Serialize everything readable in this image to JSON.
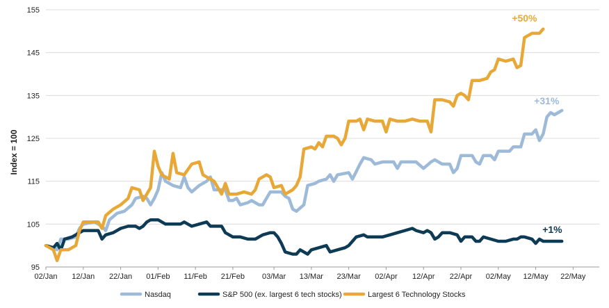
{
  "chart_data": {
    "type": "line",
    "title": "",
    "xlabel": "",
    "ylabel": "Index = 100",
    "ylim": [
      95,
      155
    ],
    "yticks": [
      95,
      105,
      115,
      125,
      135,
      145,
      155
    ],
    "grid": true,
    "legend_position": "bottom-center",
    "x_tick_labels": [
      "02/Jan",
      "12/Jan",
      "22/Jan",
      "01/Feb",
      "11/Feb",
      "21/Feb",
      "03/Mar",
      "13/Mar",
      "23/Mar",
      "02/Apr",
      "12/Apr",
      "22/Apr",
      "02/May",
      "12/May",
      "22/May"
    ],
    "x_tick_days": [
      0,
      10,
      20,
      30,
      40,
      50,
      61,
      71,
      81,
      91,
      101,
      111,
      121,
      131,
      141
    ],
    "x_range_days": [
      0,
      148
    ],
    "series": [
      {
        "name": "Nasdaq",
        "color": "#9dbad8",
        "end_label": "+31%",
        "points": [
          [
            0,
            100
          ],
          [
            2,
            99.5
          ],
          [
            3,
            99
          ],
          [
            4,
            101.5
          ],
          [
            6,
            101.5
          ],
          [
            8,
            102
          ],
          [
            9,
            104
          ],
          [
            10,
            105
          ],
          [
            13,
            105.5
          ],
          [
            15,
            104.5
          ],
          [
            16,
            103.5
          ],
          [
            17,
            106
          ],
          [
            19,
            107.5
          ],
          [
            21,
            108
          ],
          [
            23,
            109.5
          ],
          [
            24,
            111
          ],
          [
            26,
            111.5
          ],
          [
            27,
            111
          ],
          [
            28,
            109.5
          ],
          [
            29,
            111
          ],
          [
            30,
            113
          ],
          [
            31,
            117
          ],
          [
            32,
            115
          ],
          [
            34,
            114
          ],
          [
            36,
            113.5
          ],
          [
            37,
            116
          ],
          [
            38,
            113.5
          ],
          [
            39,
            112.5
          ],
          [
            41,
            114
          ],
          [
            43,
            115
          ],
          [
            44,
            116
          ],
          [
            45,
            113
          ],
          [
            47,
            113
          ],
          [
            48,
            113
          ],
          [
            49,
            110.5
          ],
          [
            50,
            110.5
          ],
          [
            51,
            111
          ],
          [
            52,
            109.5
          ],
          [
            54,
            110
          ],
          [
            55,
            110.5
          ],
          [
            56,
            110
          ],
          [
            57,
            109.5
          ],
          [
            58,
            109.5
          ],
          [
            59,
            111
          ],
          [
            60,
            112.5
          ],
          [
            63,
            112.5
          ],
          [
            64,
            111.5
          ],
          [
            65,
            111
          ],
          [
            66,
            108.5
          ],
          [
            67,
            108
          ],
          [
            69,
            109.5
          ],
          [
            70,
            114
          ],
          [
            72,
            114.5
          ],
          [
            73,
            115
          ],
          [
            75,
            115.5
          ],
          [
            76,
            116.5
          ],
          [
            77,
            115
          ],
          [
            78,
            116.5
          ],
          [
            81,
            117
          ],
          [
            82,
            115.5
          ],
          [
            84,
            119
          ],
          [
            85,
            120.5
          ],
          [
            87,
            120
          ],
          [
            88,
            119
          ],
          [
            90,
            119.5
          ],
          [
            93,
            119.5
          ],
          [
            94,
            118
          ],
          [
            95,
            119.5
          ],
          [
            99,
            119.5
          ],
          [
            101,
            118
          ],
          [
            103,
            119.5
          ],
          [
            104,
            120
          ],
          [
            106,
            119
          ],
          [
            108,
            119
          ],
          [
            109,
            117
          ],
          [
            110,
            118
          ],
          [
            111,
            121
          ],
          [
            114,
            121
          ],
          [
            115,
            119.5
          ],
          [
            116,
            119
          ],
          [
            117,
            121
          ],
          [
            119,
            121
          ],
          [
            120,
            120
          ],
          [
            121,
            122
          ],
          [
            124,
            122
          ],
          [
            125,
            123
          ],
          [
            127,
            123
          ],
          [
            128,
            126
          ],
          [
            130,
            126
          ],
          [
            131,
            127
          ],
          [
            132,
            124.5
          ],
          [
            133,
            126
          ],
          [
            134,
            130
          ],
          [
            135,
            131
          ],
          [
            136,
            130.5
          ],
          [
            137,
            131
          ],
          [
            138,
            131.5
          ]
        ]
      },
      {
        "name": "S&P 500 (ex. largest 6 tech stocks)",
        "color": "#0d3a54",
        "end_label": "+1%",
        "points": [
          [
            0,
            100
          ],
          [
            2,
            99.5
          ],
          [
            3,
            100.5
          ],
          [
            4,
            99
          ],
          [
            5,
            101.5
          ],
          [
            7,
            102
          ],
          [
            9,
            103
          ],
          [
            10,
            103.5
          ],
          [
            12,
            103.5
          ],
          [
            14,
            103.5
          ],
          [
            15,
            101.5
          ],
          [
            16,
            102.5
          ],
          [
            18,
            103
          ],
          [
            20,
            104
          ],
          [
            22,
            104.5
          ],
          [
            24,
            104.5
          ],
          [
            25,
            104
          ],
          [
            26,
            104.5
          ],
          [
            27,
            105.5
          ],
          [
            28,
            106
          ],
          [
            30,
            106
          ],
          [
            32,
            105
          ],
          [
            34,
            105
          ],
          [
            36,
            105
          ],
          [
            37,
            105.5
          ],
          [
            39,
            104.5
          ],
          [
            41,
            105
          ],
          [
            43,
            105.5
          ],
          [
            44,
            104.5
          ],
          [
            46,
            104.5
          ],
          [
            47,
            104.5
          ],
          [
            48,
            103
          ],
          [
            50,
            102
          ],
          [
            52,
            102
          ],
          [
            54,
            101.5
          ],
          [
            56,
            101.5
          ],
          [
            57,
            102
          ],
          [
            58,
            102.5
          ],
          [
            60,
            103
          ],
          [
            61,
            103
          ],
          [
            62,
            102
          ],
          [
            63,
            100.5
          ],
          [
            64,
            98.5
          ],
          [
            66,
            98
          ],
          [
            67,
            98
          ],
          [
            68,
            99
          ],
          [
            69,
            98.5
          ],
          [
            70,
            98
          ],
          [
            71,
            99
          ],
          [
            73,
            99.5
          ],
          [
            75,
            100
          ],
          [
            76,
            98.5
          ],
          [
            78,
            99
          ],
          [
            80,
            99.5
          ],
          [
            81,
            100
          ],
          [
            82,
            101
          ],
          [
            83,
            102
          ],
          [
            85,
            102.5
          ],
          [
            86,
            102
          ],
          [
            88,
            102
          ],
          [
            90,
            102
          ],
          [
            92,
            102.5
          ],
          [
            94,
            103
          ],
          [
            96,
            103.5
          ],
          [
            98,
            104
          ],
          [
            99,
            103.5
          ],
          [
            101,
            103
          ],
          [
            102,
            103.5
          ],
          [
            103,
            103
          ],
          [
            104,
            101.5
          ],
          [
            105,
            102
          ],
          [
            106,
            103
          ],
          [
            108,
            103
          ],
          [
            110,
            102.5
          ],
          [
            111,
            101
          ],
          [
            112,
            102
          ],
          [
            113,
            102
          ],
          [
            114,
            102
          ],
          [
            115,
            101
          ],
          [
            116,
            101
          ],
          [
            117,
            102
          ],
          [
            119,
            101.5
          ],
          [
            121,
            101
          ],
          [
            123,
            101
          ],
          [
            125,
            101.5
          ],
          [
            126,
            101.5
          ],
          [
            127,
            102
          ],
          [
            128,
            102
          ],
          [
            130,
            101.5
          ],
          [
            131,
            100.5
          ],
          [
            132,
            101.5
          ],
          [
            133,
            101
          ],
          [
            135,
            101
          ],
          [
            136,
            101
          ],
          [
            138,
            101
          ]
        ]
      },
      {
        "name": "Largest 6 Technology Stocks",
        "color": "#e8a838",
        "end_label": "+50%",
        "points": [
          [
            0,
            100
          ],
          [
            2,
            99
          ],
          [
            3,
            96.5
          ],
          [
            4,
            99
          ],
          [
            6,
            99
          ],
          [
            8,
            100
          ],
          [
            9,
            103.5
          ],
          [
            10,
            105.5
          ],
          [
            12,
            105.5
          ],
          [
            14,
            105.5
          ],
          [
            15,
            104
          ],
          [
            16,
            107
          ],
          [
            18,
            108.5
          ],
          [
            20,
            109.5
          ],
          [
            22,
            111
          ],
          [
            23,
            113.5
          ],
          [
            25,
            113
          ],
          [
            26,
            110.5
          ],
          [
            27,
            112
          ],
          [
            28,
            113.5
          ],
          [
            29,
            122
          ],
          [
            30,
            118.5
          ],
          [
            31,
            116.5
          ],
          [
            33,
            115.5
          ],
          [
            34,
            121.5
          ],
          [
            35,
            117
          ],
          [
            37,
            116.5
          ],
          [
            39,
            119
          ],
          [
            41,
            119.5
          ],
          [
            42,
            116.5
          ],
          [
            44,
            115.5
          ],
          [
            45,
            115
          ],
          [
            46,
            113.5
          ],
          [
            47,
            112
          ],
          [
            48,
            114.5
          ],
          [
            49,
            112
          ],
          [
            51,
            112
          ],
          [
            53,
            112.5
          ],
          [
            55,
            112
          ],
          [
            56,
            113
          ],
          [
            57,
            115.5
          ],
          [
            59,
            116.5
          ],
          [
            60,
            116
          ],
          [
            61,
            113.5
          ],
          [
            63,
            114
          ],
          [
            64,
            112
          ],
          [
            66,
            113
          ],
          [
            67,
            114
          ],
          [
            68,
            116
          ],
          [
            69,
            122.5
          ],
          [
            71,
            123
          ],
          [
            72,
            122.5
          ],
          [
            73,
            124
          ],
          [
            74,
            123
          ],
          [
            75,
            125.5
          ],
          [
            77,
            125.5
          ],
          [
            78,
            125
          ],
          [
            79,
            123.5
          ],
          [
            80,
            125
          ],
          [
            81,
            129
          ],
          [
            83,
            129
          ],
          [
            84,
            129.5
          ],
          [
            85,
            127
          ],
          [
            86,
            129.5
          ],
          [
            88,
            129
          ],
          [
            90,
            129
          ],
          [
            91,
            126.5
          ],
          [
            92,
            129.5
          ],
          [
            94,
            129
          ],
          [
            96,
            129
          ],
          [
            98,
            129.5
          ],
          [
            100,
            129
          ],
          [
            102,
            129
          ],
          [
            103,
            126.5
          ],
          [
            104,
            134
          ],
          [
            106,
            134
          ],
          [
            108,
            133.5
          ],
          [
            109,
            132.5
          ],
          [
            110,
            135
          ],
          [
            111,
            135.5
          ],
          [
            112,
            135
          ],
          [
            113,
            134
          ],
          [
            114,
            138.5
          ],
          [
            116,
            138.5
          ],
          [
            118,
            139
          ],
          [
            119,
            140.5
          ],
          [
            120,
            141
          ],
          [
            121,
            143.5
          ],
          [
            123,
            143
          ],
          [
            125,
            143.5
          ],
          [
            126,
            141.5
          ],
          [
            127,
            142
          ],
          [
            128,
            148.5
          ],
          [
            130,
            149.5
          ],
          [
            132,
            149.5
          ],
          [
            133,
            150.5
          ]
        ]
      }
    ]
  }
}
